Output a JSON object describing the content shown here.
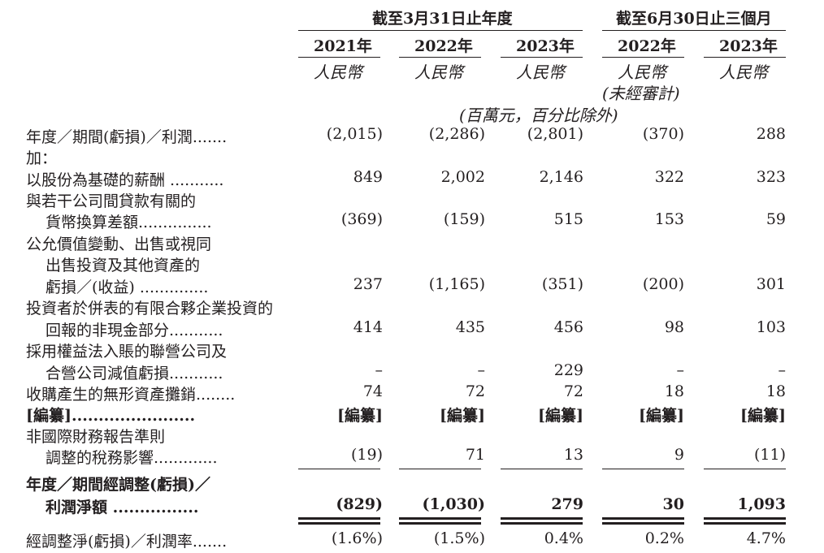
{
  "header": {
    "group_year": "截至3月31日止年度",
    "group_half": "截至6月30日止三個月",
    "years": [
      "2021年",
      "2022年",
      "2023年",
      "2022年",
      "2023年"
    ],
    "currency": [
      "人民幣",
      "人民幣",
      "人民幣",
      "人民幣",
      "人民幣"
    ],
    "unaudited": "(未經審計)",
    "unit": "(百萬元，百分比除外)"
  },
  "rows": [
    {
      "label": [
        "年度／期間(虧損)／利潤......."
      ],
      "values": [
        "(2,015)",
        "(2,286)",
        "(2,801)",
        "(370)",
        "288"
      ]
    },
    {
      "label": [
        "加："
      ],
      "values": []
    },
    {
      "label": [
        "以股份為基礎的薪酬 ..........."
      ],
      "values": [
        "849",
        "2,002",
        "2,146",
        "322",
        "323"
      ]
    },
    {
      "label": [
        "與若干公司間貸款有關的",
        "貨幣換算差額..............."
      ],
      "values": [
        "(369)",
        "(159)",
        "515",
        "153",
        "59"
      ]
    },
    {
      "label": [
        "公允價值變動、出售或視同",
        "出售投資及其他資產的",
        "虧損／(收益) .............."
      ],
      "values": [
        "237",
        "(1,165)",
        "(351)",
        "(200)",
        "301"
      ]
    },
    {
      "label": [
        "投資者於併表的有限合夥企業投資的",
        "回報的非現金部分..........."
      ],
      "values": [
        "414",
        "435",
        "456",
        "98",
        "103"
      ]
    },
    {
      "label": [
        "採用權益法入賬的聯營公司及",
        "合營公司減值虧損..........."
      ],
      "values": [
        "–",
        "–",
        "229",
        "–",
        "–"
      ]
    },
    {
      "label": [
        "收購產生的無形資產攤銷........"
      ],
      "values": [
        "74",
        "72",
        "72",
        "18",
        "18"
      ]
    },
    {
      "label": [
        "[編纂]......................."
      ],
      "values": [
        "[編纂]",
        "[編纂]",
        "[編纂]",
        "[編纂]",
        "[編纂]"
      ]
    },
    {
      "label": [
        "非國際財務報告準則",
        "調整的稅務影響............."
      ],
      "values": [
        "(19)",
        "71",
        "13",
        "9",
        "(11)"
      ]
    },
    {
      "label": [
        "年度／期間經調整(虧損)／",
        "利潤淨額 ................"
      ],
      "values": [
        "(829)",
        "(1,030)",
        "279",
        "30",
        "1,093"
      ]
    },
    {
      "label": [
        "經調整淨(虧損)／利潤率......."
      ],
      "values": [
        "(1.6%)",
        "(1.5%)",
        "0.4%",
        "0.2%",
        "4.7%"
      ]
    }
  ]
}
